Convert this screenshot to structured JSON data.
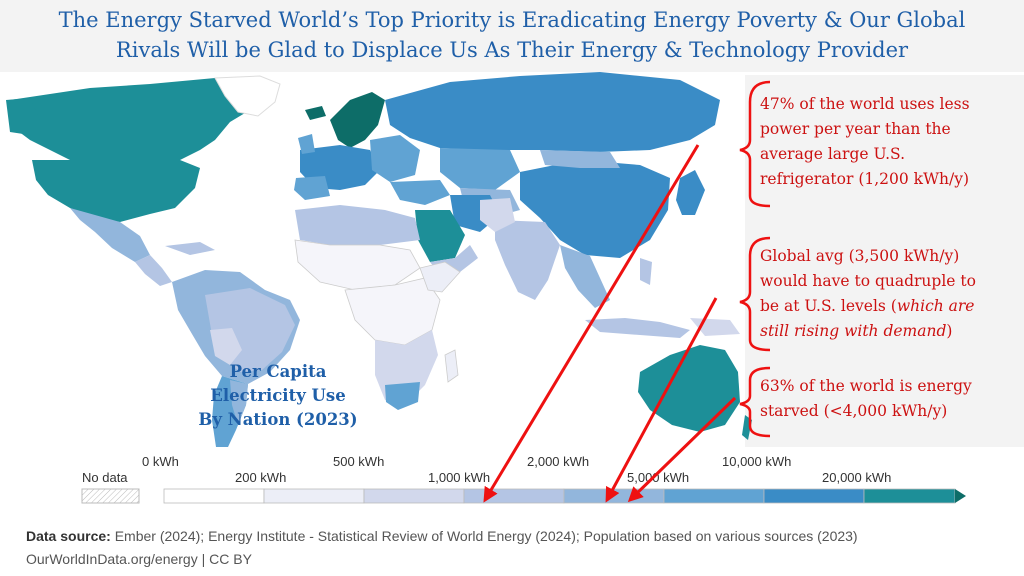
{
  "title": {
    "line1": "The Energy Starved World’s Top Priority is Eradicating Energy Poverty & Our Global",
    "line2": "Rivals Will be Glad to Displace Us As Their Energy & Technology Provider"
  },
  "map_label": {
    "line1": "Per Capita",
    "line2": "Electricity Use",
    "line3": "By Nation (2023)"
  },
  "callouts": {
    "c1": [
      "47% of the world uses less",
      "power per year than the",
      "average large U.S.",
      "refrigerator (1,200 kWh/y)"
    ],
    "c2_line1": "Global avg (3,500 kWh/y)",
    "c2_line2": "would have to quadruple to",
    "c2_line3a": "be at U.S. levels (",
    "c2_line3b": "which are",
    "c2_line4a": "still rising with demand",
    "c2_line4b": ")",
    "c3": [
      "63% of the world is energy",
      "starved (<4,000 kWh/y)"
    ]
  },
  "legend": {
    "no_data": "No data",
    "top_ticks": [
      "0 kWh",
      "500 kWh",
      "1,000 kWh",
      "2,000 kWh",
      "5,000 kWh",
      "10,000 kWh"
    ],
    "bottom_ticks": [
      "200 kWh",
      "1,000 kWh",
      "5,000 kWh",
      "20,000 kWh"
    ],
    "bin_colors": [
      "#ffffff",
      "#eceef7",
      "#d2d8ec",
      "#b4c5e4",
      "#92b6dc",
      "#60a3d3",
      "#3a8cc6",
      "#1d8f98",
      "#0d6d68"
    ]
  },
  "source": {
    "label": "Data source:",
    "text": "Ember (2024); Energy Institute - Statistical Review of World Energy (2024); Population based on various sources (2023)",
    "line2": "OurWorldInData.org/energy | CC BY"
  },
  "colors": {
    "title": "#1f5fa8",
    "callout": "#cc1111",
    "arrow": "#ee1111",
    "very_high": "#1d8f98",
    "high": "#3a8cc6",
    "medium": "#92b6dc",
    "low": "#d2d8ec",
    "very_low": "#f5f5fa"
  }
}
